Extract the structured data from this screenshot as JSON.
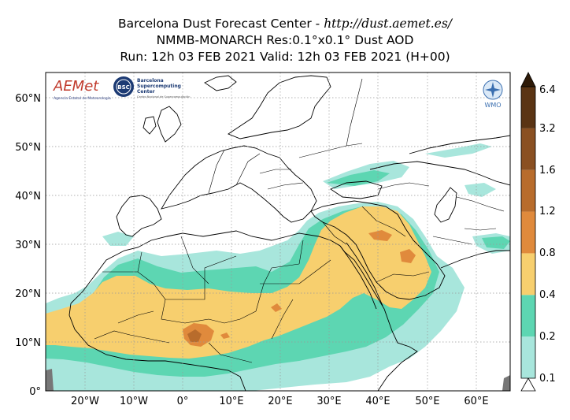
{
  "header": {
    "line1_prefix": "Barcelona Dust Forecast Center - ",
    "line1_url": "http://dust.aemet.es/",
    "line2": "NMMB-MONARCH   Res:0.1°x0.1°   Dust AOD",
    "line3": "Run: 12h 03 FEB 2021   Valid: 12h 03 FEB 2021 (H+00)"
  },
  "map": {
    "lat_ticks": [
      "0°",
      "10°N",
      "20°N",
      "30°N",
      "40°N",
      "50°N",
      "60°N"
    ],
    "lon_ticks": [
      "20°W",
      "10°W",
      "0°",
      "10°E",
      "20°E",
      "30°E",
      "40°E",
      "50°E",
      "60°E"
    ]
  },
  "colorbar": {
    "levels": [
      "0.1",
      "0.2",
      "0.4",
      "0.8",
      "1.2",
      "1.6",
      "3.2",
      "6.4"
    ],
    "colors": [
      "#a8e6dc",
      "#5dd6b2",
      "#f7cf6e",
      "#e08a3c",
      "#b86c2c",
      "#8a5022",
      "#5a3414",
      "#2e1a08"
    ]
  },
  "logos": {
    "aemet": "AEMet",
    "aemet_sub": "Agencia Estatal de Meteorología",
    "bsc": "BSC",
    "bsc_name_1": "Barcelona",
    "bsc_name_2": "Supercomputing",
    "bsc_name_3": "Center",
    "bsc_sub": "Centro Nacional de Supercomputación",
    "wmo": "WMO"
  },
  "colors": {
    "aod_low": "#a8e6dc",
    "aod_mid": "#5dd6b2",
    "aod_high": "#f7cf6e",
    "aod_vhigh": "#e08a3c",
    "aod_extreme": "#b86c2c"
  }
}
